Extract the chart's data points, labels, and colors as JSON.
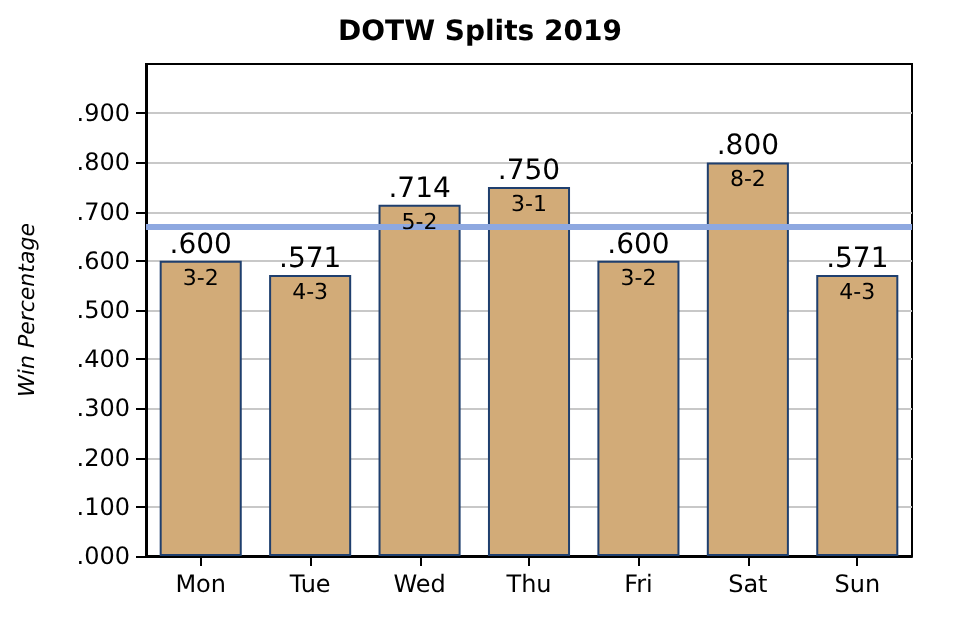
{
  "chart_data": {
    "type": "bar",
    "title": "DOTW Splits 2019",
    "ylabel": "Win Percentage",
    "categories": [
      "Mon",
      "Tue",
      "Wed",
      "Thu",
      "Fri",
      "Sat",
      "Sun"
    ],
    "values": [
      0.6,
      0.571,
      0.714,
      0.75,
      0.6,
      0.8,
      0.571
    ],
    "value_labels": [
      ".600",
      ".571",
      ".714",
      ".750",
      ".600",
      ".800",
      ".571"
    ],
    "color": "#d2ab78",
    "ylim": [
      0,
      1
    ],
    "yticks": [
      {
        "value": 0,
        "label": ".000"
      },
      {
        "value": 0.1,
        "label": ".100"
      },
      {
        "value": 0.2,
        "label": ".200"
      },
      {
        "value": 0.3,
        "label": ".300"
      },
      {
        "value": 0.4,
        "label": ".400"
      },
      {
        "value": 0.5,
        "label": ".500"
      },
      {
        "value": 0.6,
        "label": ".600"
      },
      {
        "value": 0.7,
        "label": ".700"
      },
      {
        "value": 0.8,
        "label": ".800"
      },
      {
        "value": 0.9,
        "label": ".900"
      }
    ],
    "grid": "y",
    "ref_lines": [
      {
        "axis": "y",
        "value": 0.667,
        "color": "#8ea8e0"
      }
    ],
    "annotations": [
      {
        "text": "3-2",
        "x": "Mon",
        "y": 0.6
      },
      {
        "text": "4-3",
        "x": "Tue",
        "y": 0.571
      },
      {
        "text": "5-2",
        "x": "Wed",
        "y": 0.714
      },
      {
        "text": "3-1",
        "x": "Thu",
        "y": 0.75
      },
      {
        "text": "3-2",
        "x": "Fri",
        "y": 0.6
      },
      {
        "text": "8-2",
        "x": "Sat",
        "y": 0.8
      },
      {
        "text": "4-3",
        "x": "Sun",
        "y": 0.571
      }
    ]
  }
}
